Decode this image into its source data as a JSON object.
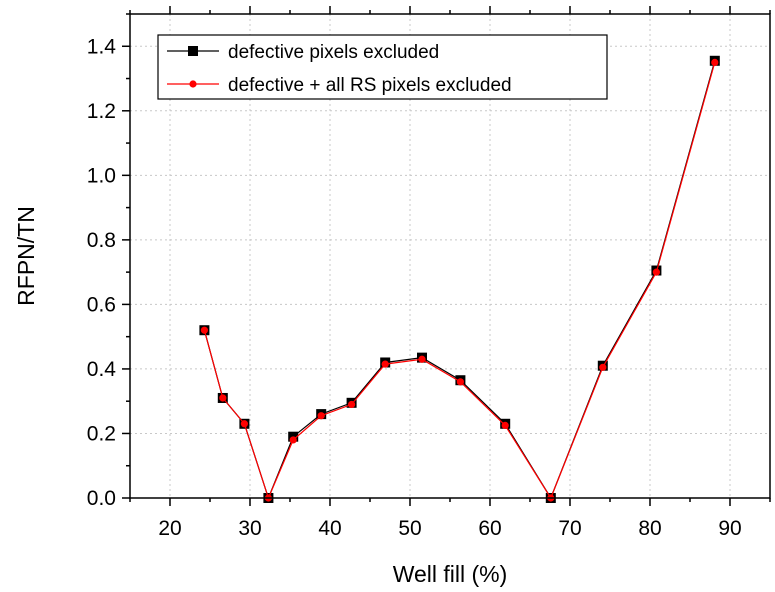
{
  "chart_data": {
    "type": "line",
    "xlabel": "Well fill (%)",
    "ylabel": "RFPN/TN",
    "xlim": [
      15,
      95
    ],
    "ylim": [
      0,
      1.5
    ],
    "xticks": [
      20,
      30,
      40,
      50,
      60,
      70,
      80,
      90
    ],
    "yticks": [
      0.0,
      0.2,
      0.4,
      0.6,
      0.8,
      1.0,
      1.2,
      1.4
    ],
    "ytick_labels": [
      "0.0",
      "0.2",
      "0.4",
      "0.6",
      "0.8",
      "1.0",
      "1.2",
      "1.4"
    ],
    "grid": true,
    "legend_position": "top-left",
    "series": [
      {
        "name": "defective pixels excluded",
        "color": "#000000",
        "marker": "square",
        "x": [
          24.3,
          26.6,
          29.3,
          32.3,
          35.4,
          38.9,
          42.7,
          46.9,
          51.5,
          56.3,
          61.9,
          67.6,
          74.1,
          80.8,
          88.1
        ],
        "y": [
          0.52,
          0.31,
          0.23,
          0.0,
          0.19,
          0.26,
          0.295,
          0.42,
          0.435,
          0.365,
          0.23,
          0.0,
          0.41,
          0.705,
          1.355
        ]
      },
      {
        "name": "defective + all RS pixels excluded",
        "color": "#ff0000",
        "marker": "circle",
        "x": [
          24.3,
          26.6,
          29.3,
          32.3,
          35.4,
          38.9,
          42.7,
          46.9,
          51.5,
          56.3,
          61.9,
          67.6,
          74.1,
          80.8,
          88.1
        ],
        "y": [
          0.52,
          0.31,
          0.23,
          0.0,
          0.18,
          0.255,
          0.29,
          0.415,
          0.43,
          0.36,
          0.225,
          0.0,
          0.405,
          0.7,
          1.35
        ]
      }
    ]
  }
}
